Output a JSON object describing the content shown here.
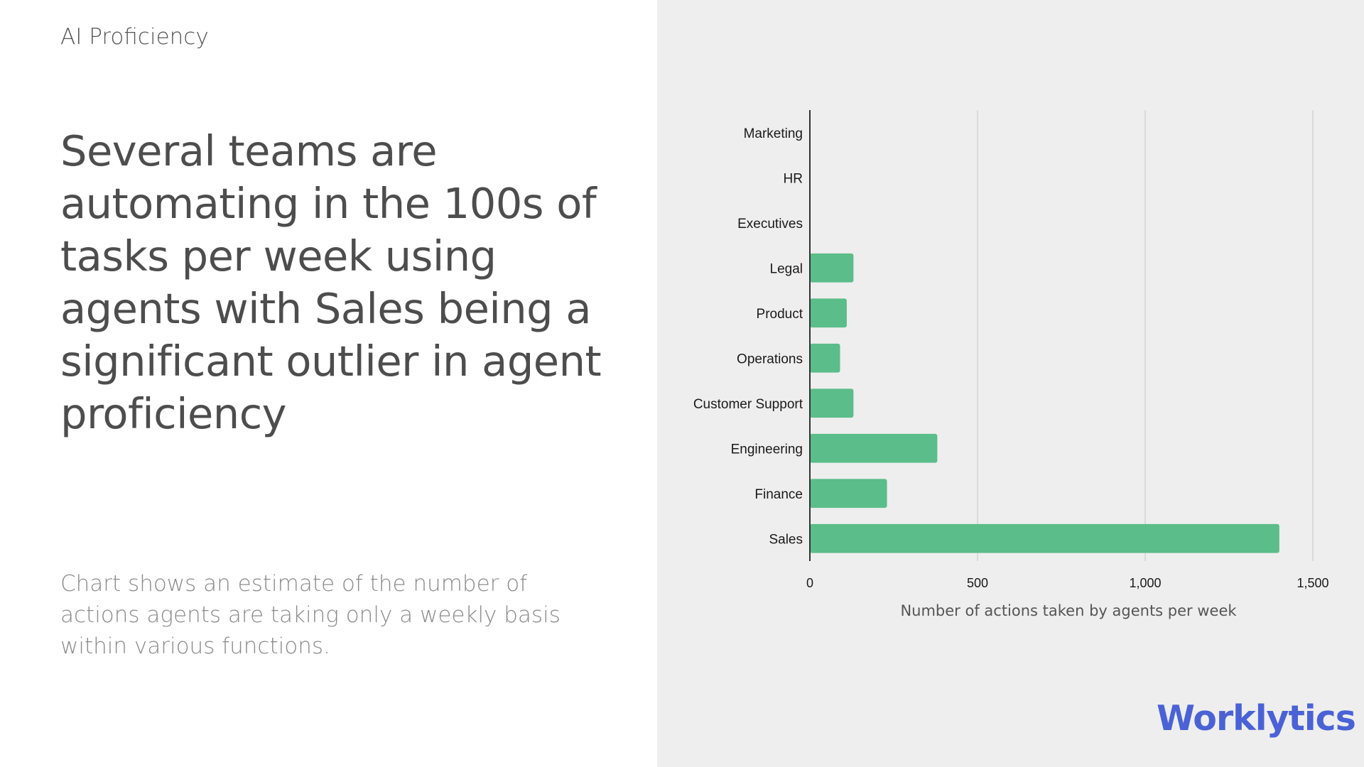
{
  "header": {
    "section_label": "AI Proficiency"
  },
  "main": {
    "headline": "Several teams are automating in the 100s of tasks per week using agents with Sales being a significant outlier in agent proficiency",
    "caption": "Chart shows an estimate of the number of actions agents are taking only a weekly basis within various functions."
  },
  "brand": {
    "logo_text": "Worklytics"
  },
  "colors": {
    "bar": "#5bbd89",
    "brand": "#4a62d6",
    "panel_bg": "#eeeeee"
  },
  "chart_data": {
    "type": "bar",
    "orientation": "horizontal",
    "categories": [
      "Marketing",
      "HR",
      "Executives",
      "Legal",
      "Product",
      "Operations",
      "Customer Support",
      "Engineering",
      "Finance",
      "Sales"
    ],
    "values": [
      0,
      0,
      0,
      130,
      110,
      90,
      130,
      380,
      230,
      1400
    ],
    "xlabel": "Number of actions taken by agents per week",
    "ylabel": "",
    "xlim": [
      0,
      1500
    ],
    "xticks": [
      0,
      500,
      1000,
      1500
    ],
    "xtick_labels": [
      "0",
      "500",
      "1,000",
      "1,500"
    ],
    "grid": true
  }
}
